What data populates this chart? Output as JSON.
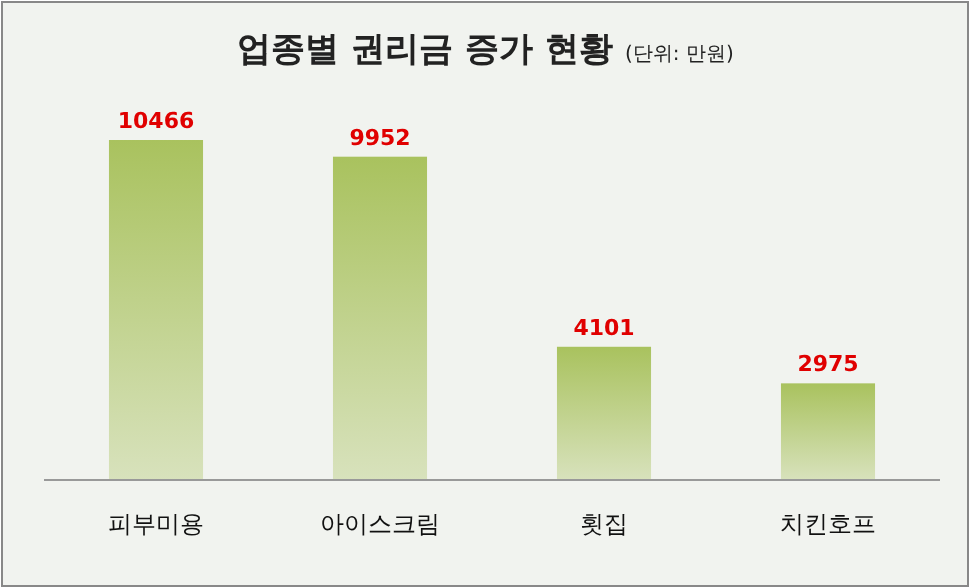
{
  "chart_data": {
    "type": "bar",
    "title": "업종별 권리금 증가 현황",
    "subtitle": "(단위: 만원)",
    "categories": [
      "피부미용",
      "아이스크림",
      "횟집",
      "치킨호프"
    ],
    "values": [
      10466,
      9952,
      4101,
      2975
    ],
    "color": "#a9c25e",
    "data_labels": true
  }
}
